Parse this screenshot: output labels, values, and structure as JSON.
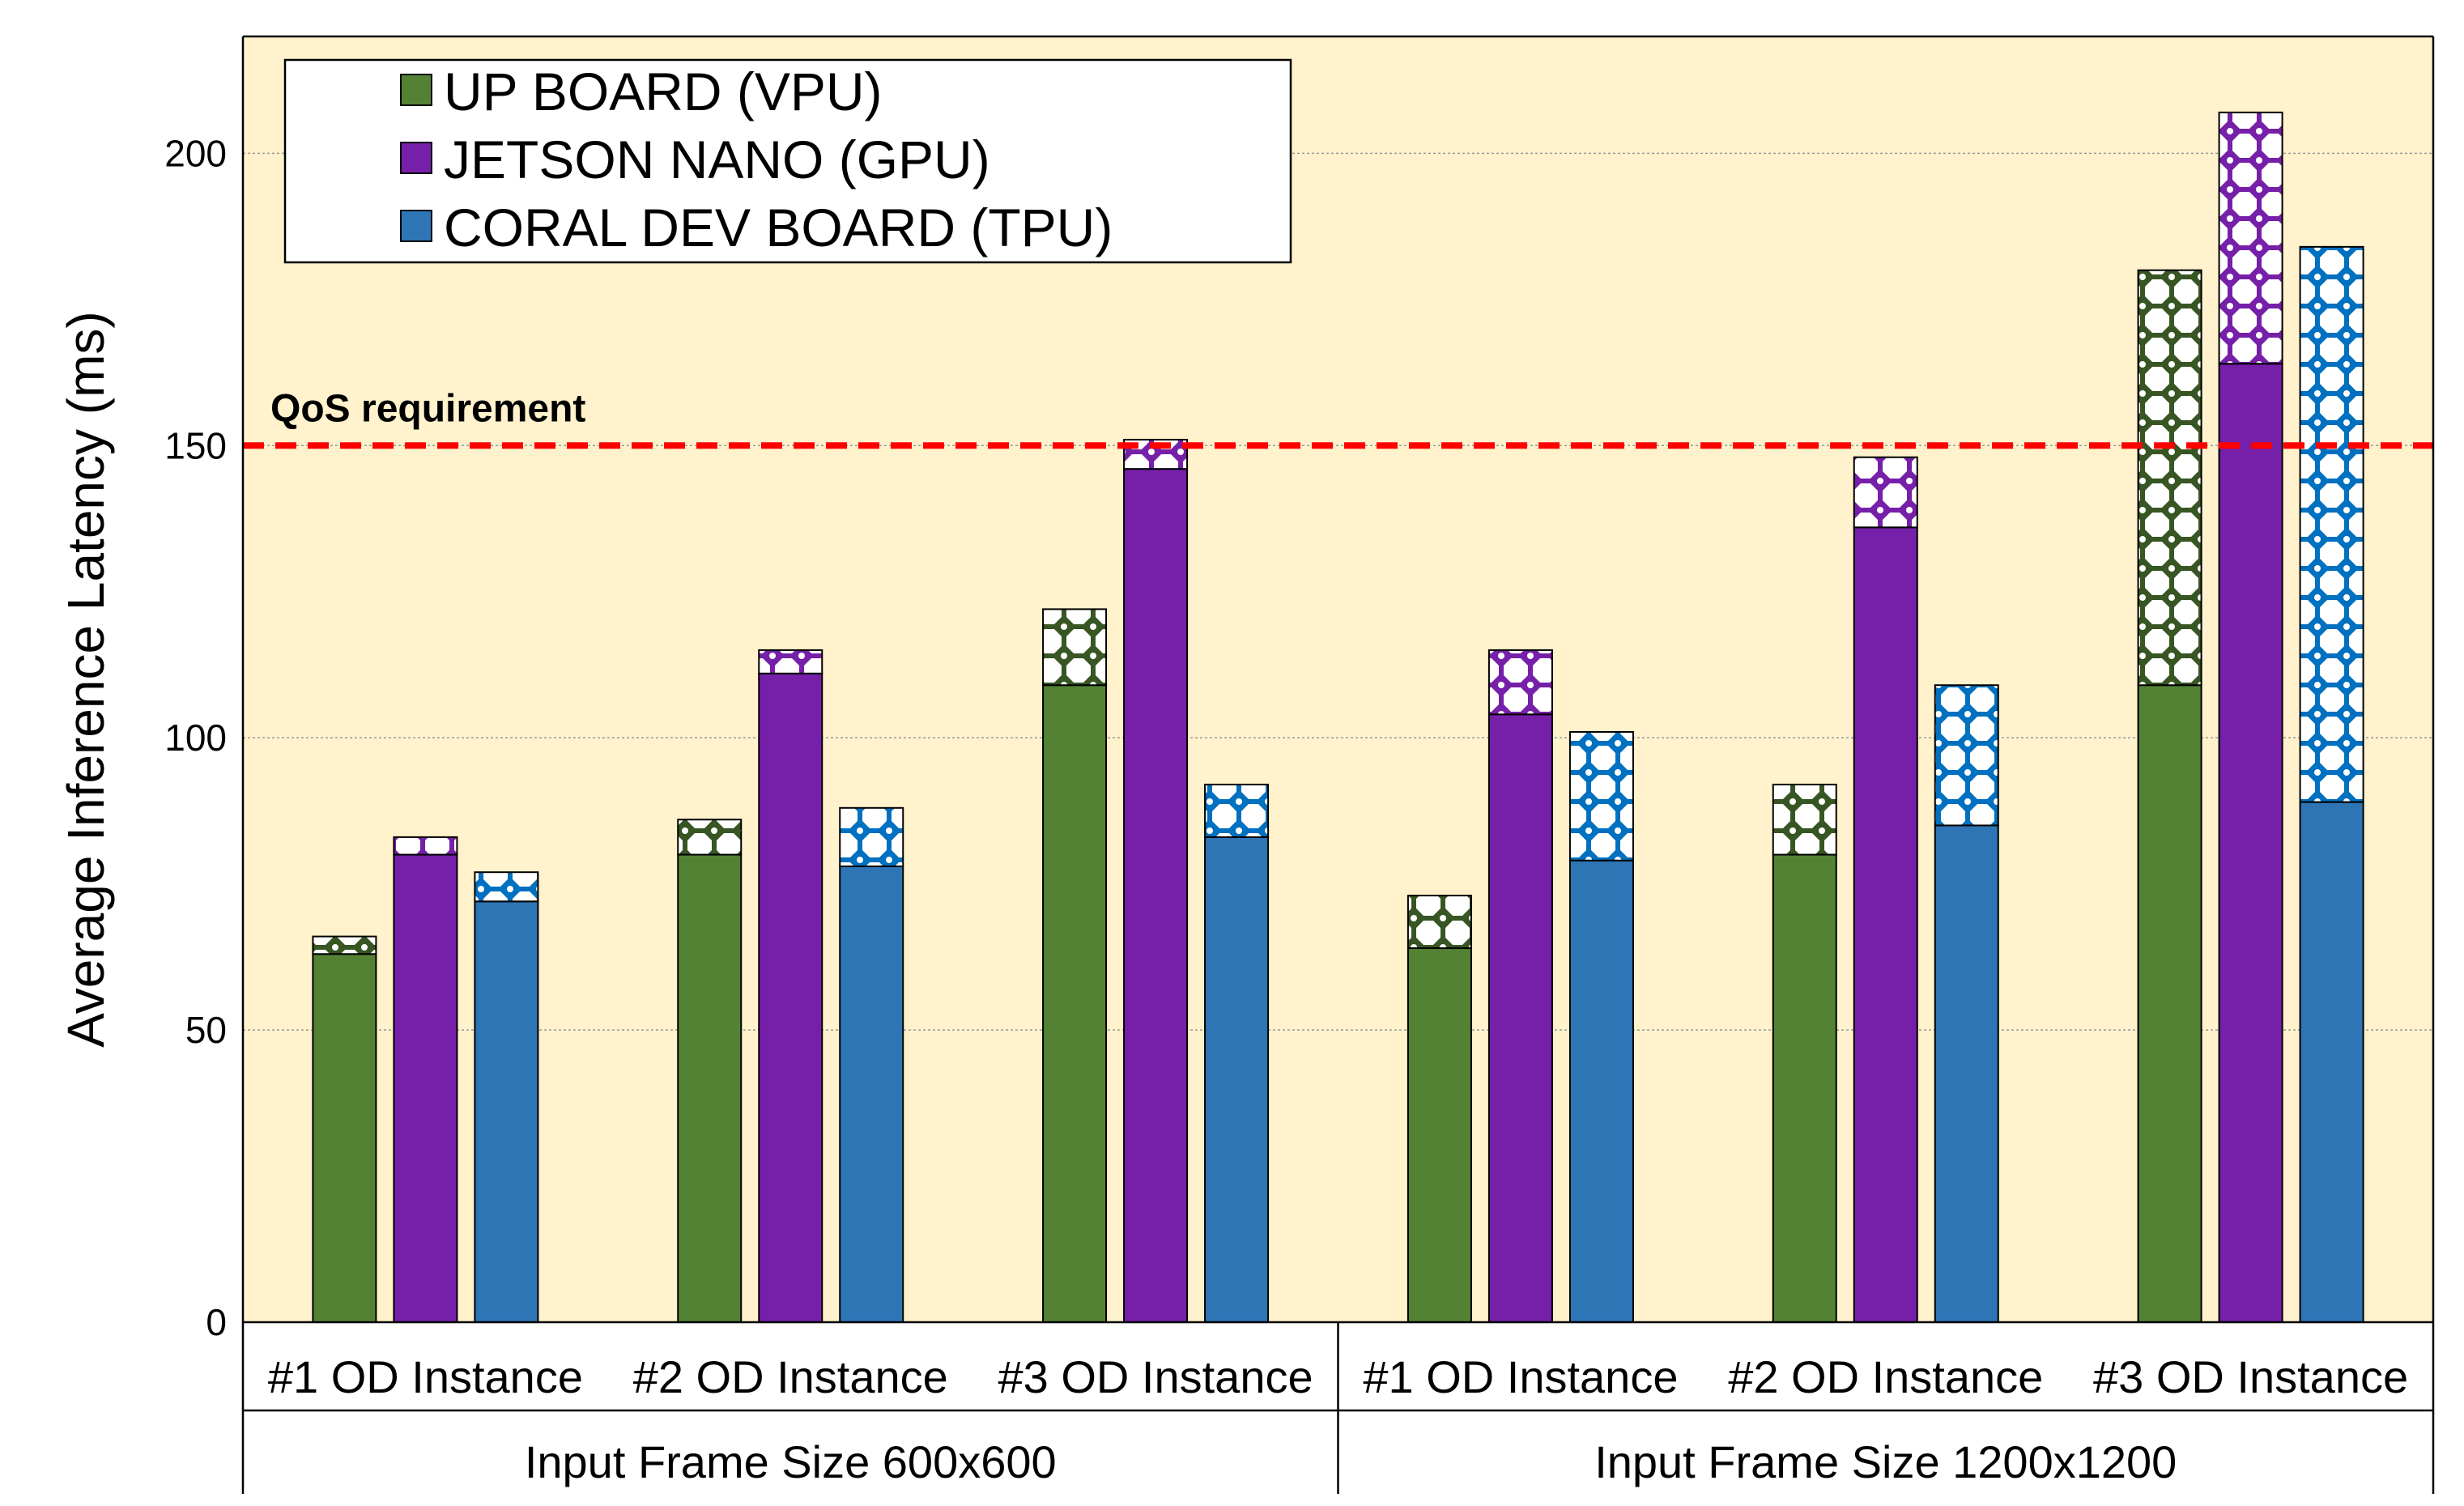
{
  "chart_data": {
    "type": "bar",
    "stacked": true,
    "ylabel": "Average Inference Latency (ms)",
    "ylim": [
      0,
      220
    ],
    "yticks": [
      0,
      50,
      100,
      150,
      200
    ],
    "grid": true,
    "legend_position": "top-left",
    "groups": [
      {
        "label": "Input Frame Size 600x600",
        "categories": [
          "#1 OD Instance",
          "#2 OD Instance",
          "#3 OD Instance"
        ]
      },
      {
        "label": "Input Frame Size 1200x1200",
        "categories": [
          "#1 OD Instance",
          "#2 OD Instance",
          "#3 OD Instance"
        ]
      }
    ],
    "series": [
      {
        "name": "UP BOARD (VPU)",
        "color": "#548235",
        "pattern_color": "#375623",
        "base": [
          63,
          80,
          109,
          64,
          80,
          109
        ],
        "total": [
          66,
          86,
          122,
          73,
          92,
          180
        ]
      },
      {
        "name": "JETSON NANO (GPU)",
        "color": "#7620A9",
        "pattern_color": "#7620A9",
        "base": [
          80,
          111,
          146,
          104,
          136,
          164
        ],
        "total": [
          83,
          115,
          151,
          115,
          148,
          207
        ]
      },
      {
        "name": "CORAL DEV BOARD (TPU)",
        "color": "#2E75B6",
        "pattern_color": "#0070C0",
        "base": [
          72,
          78,
          83,
          79,
          85,
          89
        ],
        "total": [
          77,
          88,
          92,
          101,
          109,
          184
        ]
      }
    ],
    "threshold": {
      "value": 150,
      "label": "QoS requirement",
      "color": "#FF0000"
    },
    "background_color": "#FFF2CC"
  }
}
